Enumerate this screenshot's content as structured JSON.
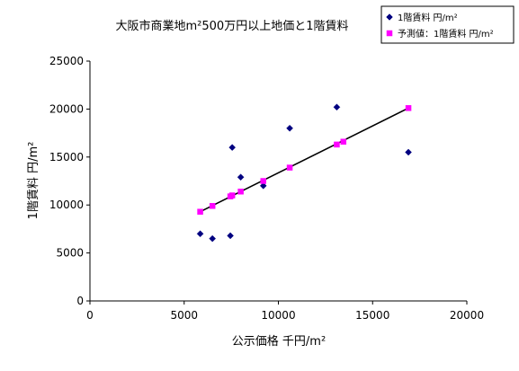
{
  "chart_data": {
    "type": "scatter",
    "title": "大阪市商業地m²500万円以上地価と1階賃料",
    "xlabel": "公示価格 千円/m²",
    "ylabel": "1階賃料 円/m²",
    "xlim": [
      0,
      20000
    ],
    "ylim": [
      0,
      25000
    ],
    "xticks": [
      0,
      5000,
      10000,
      15000,
      20000
    ],
    "yticks": [
      0,
      5000,
      10000,
      15000,
      20000,
      25000
    ],
    "x_tick_labels": [
      "0",
      "5000",
      "10000",
      "15000",
      "20000"
    ],
    "y_tick_labels": [
      "0",
      "5000",
      "10000",
      "15000",
      "20000",
      "25000"
    ],
    "grid": false,
    "legend_position": "top-right",
    "series": [
      {
        "name": "1階賃料 円/m²",
        "marker": "diamond",
        "color": "#000080",
        "x": [
          5850,
          6500,
          7450,
          7550,
          8000,
          9200,
          10600,
          13100,
          16900
        ],
        "y": [
          7000,
          6500,
          6800,
          16000,
          12900,
          12000,
          18000,
          20200,
          15500
        ]
      },
      {
        "name": "予測値：1階賃料 円/m²",
        "marker": "square",
        "color": "#ff00ff",
        "x": [
          5850,
          6500,
          7450,
          7550,
          8000,
          9200,
          10600,
          13100,
          13450,
          16900
        ],
        "y": [
          9300,
          9900,
          10900,
          11000,
          11400,
          12500,
          13900,
          16300,
          16600,
          20100
        ]
      }
    ],
    "trendline": {
      "color": "#000000",
      "x": [
        5850,
        16900
      ],
      "y": [
        9300,
        20100
      ]
    }
  }
}
